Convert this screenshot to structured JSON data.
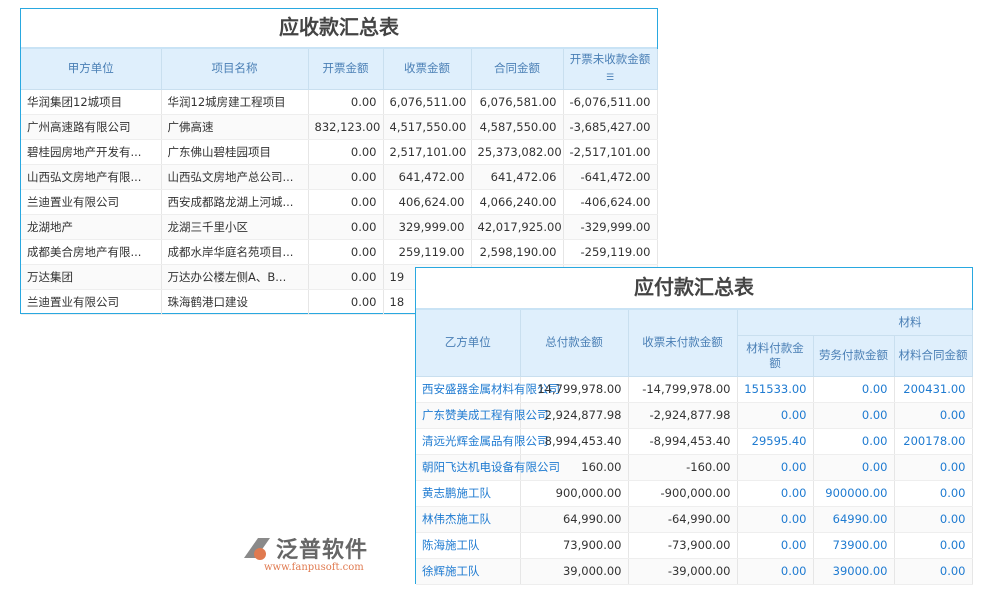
{
  "receivable": {
    "title": "应收款汇总表",
    "columns": [
      "甲方单位",
      "项目名称",
      "开票金额",
      "收票金额",
      "合同金额",
      "开票未收款金额"
    ],
    "sort_icon": "list-sort-icon",
    "rows": [
      [
        "华润集团12城项目",
        "华润12城房建工程项目",
        "0.00",
        "6,076,511.00",
        "6,076,581.00",
        "-6,076,511.00"
      ],
      [
        "广州高速路有限公司",
        "广佛高速",
        "832,123.00",
        "4,517,550.00",
        "4,587,550.00",
        "-3,685,427.00"
      ],
      [
        "碧桂园房地产开发有...",
        "广东佛山碧桂园项目",
        "0.00",
        "2,517,101.00",
        "25,373,082.00",
        "-2,517,101.00"
      ],
      [
        "山西弘文房地产有限...",
        "山西弘文房地产总公司...",
        "0.00",
        "641,472.00",
        "641,472.06",
        "-641,472.00"
      ],
      [
        "兰迪置业有限公司",
        "西安成都路龙湖上河城...",
        "0.00",
        "406,624.00",
        "4,066,240.00",
        "-406,624.00"
      ],
      [
        "龙湖地产",
        "龙湖三千里小区",
        "0.00",
        "329,999.00",
        "42,017,925.00",
        "-329,999.00"
      ],
      [
        "成都美合房地产有限...",
        "成都水岸华庭名苑项目...",
        "0.00",
        "259,119.00",
        "2,598,190.00",
        "-259,119.00"
      ],
      [
        "万达集团",
        "万达办公楼左侧A、B...",
        "0.00",
        "19",
        "",
        ""
      ],
      [
        "兰迪置业有限公司",
        "珠海鹤港口建设",
        "0.00",
        "18",
        "",
        ""
      ]
    ]
  },
  "payable": {
    "title": "应付款汇总表",
    "group": "材料",
    "columns": [
      "乙方单位",
      "总付款金额",
      "收票未付款金额",
      "材料付款金额",
      "劳务付款金额",
      "材料合同金额"
    ],
    "rows": [
      [
        "西安盛器金属材料有限公司",
        "14,799,978.00",
        "-14,799,978.00",
        "151533.00",
        "0.00",
        "200431.00"
      ],
      [
        "广东赞美成工程有限公司",
        "2,924,877.98",
        "-2,924,877.98",
        "0.00",
        "0.00",
        "0.00"
      ],
      [
        "清远光辉金属品有限公司",
        "8,994,453.40",
        "-8,994,453.40",
        "29595.40",
        "0.00",
        "200178.00"
      ],
      [
        "朝阳飞达机电设备有限公司",
        "160.00",
        "-160.00",
        "0.00",
        "0.00",
        "0.00"
      ],
      [
        "黄志鹏施工队",
        "900,000.00",
        "-900,000.00",
        "0.00",
        "900000.00",
        "0.00"
      ],
      [
        "林伟杰施工队",
        "64,990.00",
        "-64,990.00",
        "0.00",
        "64990.00",
        "0.00"
      ],
      [
        "陈海施工队",
        "73,900.00",
        "-73,900.00",
        "0.00",
        "73900.00",
        "0.00"
      ],
      [
        "徐辉施工队",
        "39,000.00",
        "-39,000.00",
        "0.00",
        "39000.00",
        "0.00"
      ]
    ]
  },
  "watermark": {
    "name": "泛普软件",
    "url": "www.fanpusoft.com"
  },
  "colors": {
    "border": "#29a8e0",
    "header_bg": "#dfeffc",
    "link": "#1f7bd1"
  }
}
